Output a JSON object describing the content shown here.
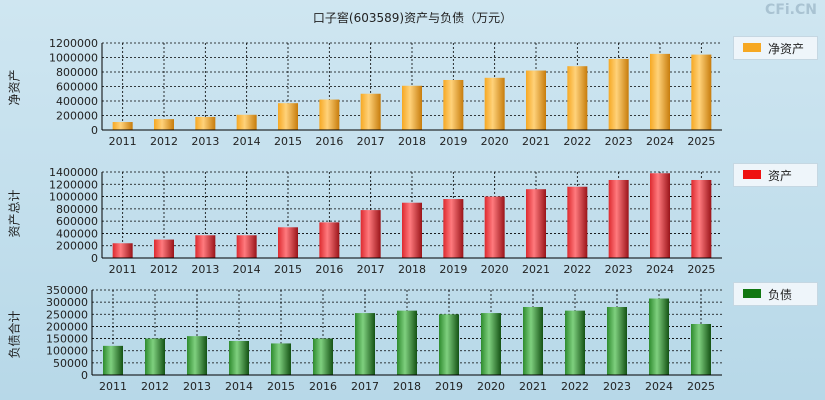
{
  "title": "口子窖(603589)资产与负债（万元）",
  "watermark": "CFi.CN",
  "colors": {
    "equity": "#f6a823",
    "assets": "#dd2a2f",
    "liabilities": "#2e8b2e"
  },
  "chart_data": [
    {
      "type": "bar",
      "ylabel": "净资产",
      "categories": [
        "2011",
        "2012",
        "2013",
        "2014",
        "2015",
        "2016",
        "2017",
        "2018",
        "2019",
        "2020",
        "2021",
        "2022",
        "2023",
        "2024",
        "2025"
      ],
      "series": [
        {
          "name": "净资产",
          "values": [
            110000,
            150000,
            180000,
            210000,
            370000,
            420000,
            500000,
            610000,
            690000,
            720000,
            820000,
            880000,
            980000,
            1050000,
            1040000
          ]
        }
      ],
      "ylim": [
        0,
        1200000
      ],
      "yticks": [
        0,
        200000,
        400000,
        600000,
        800000,
        1000000,
        1200000
      ],
      "legend": "right"
    },
    {
      "type": "bar",
      "ylabel": "资产总计",
      "categories": [
        "2011",
        "2012",
        "2013",
        "2014",
        "2015",
        "2016",
        "2017",
        "2018",
        "2019",
        "2020",
        "2021",
        "2022",
        "2023",
        "2024",
        "2025"
      ],
      "series": [
        {
          "name": "资产",
          "values": [
            240000,
            300000,
            370000,
            370000,
            500000,
            580000,
            780000,
            900000,
            960000,
            1000000,
            1120000,
            1160000,
            1270000,
            1380000,
            1270000
          ]
        }
      ],
      "ylim": [
        0,
        1400000
      ],
      "yticks": [
        0,
        200000,
        400000,
        600000,
        800000,
        1000000,
        1200000,
        1400000
      ],
      "legend": "right"
    },
    {
      "type": "bar",
      "ylabel": "负债合计",
      "categories": [
        "2011",
        "2012",
        "2013",
        "2014",
        "2015",
        "2016",
        "2017",
        "2018",
        "2019",
        "2020",
        "2021",
        "2022",
        "2023",
        "2024",
        "2025"
      ],
      "series": [
        {
          "name": "负债",
          "values": [
            120000,
            150000,
            160000,
            140000,
            130000,
            150000,
            255000,
            265000,
            250000,
            255000,
            280000,
            265000,
            280000,
            315000,
            210000
          ]
        }
      ],
      "ylim": [
        0,
        350000
      ],
      "yticks": [
        0,
        50000,
        100000,
        150000,
        200000,
        250000,
        300000,
        350000
      ],
      "legend": "right"
    }
  ]
}
